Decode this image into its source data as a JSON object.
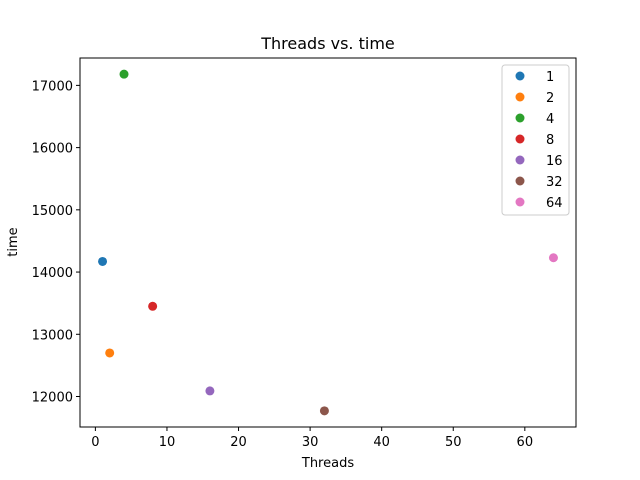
{
  "chart_data": {
    "type": "scatter",
    "title": "Threads vs. time",
    "xlabel": "Threads",
    "ylabel": "time",
    "xlim": [
      -2.15,
      67.15
    ],
    "ylim": [
      11510,
      17440
    ],
    "xticks": [
      0,
      10,
      20,
      30,
      40,
      50,
      60
    ],
    "yticks": [
      12000,
      13000,
      14000,
      15000,
      16000,
      17000
    ],
    "grid": false,
    "legend_position": "top-right",
    "series": [
      {
        "name": "1",
        "color": "#1f77b4",
        "points": [
          {
            "x": 1,
            "y": 14170
          }
        ]
      },
      {
        "name": "2",
        "color": "#ff7f0e",
        "points": [
          {
            "x": 2,
            "y": 12700
          }
        ]
      },
      {
        "name": "4",
        "color": "#2ca02c",
        "points": [
          {
            "x": 4,
            "y": 17180
          }
        ]
      },
      {
        "name": "8",
        "color": "#d62728",
        "points": [
          {
            "x": 8,
            "y": 13450
          }
        ]
      },
      {
        "name": "16",
        "color": "#9467bd",
        "points": [
          {
            "x": 16,
            "y": 12090
          }
        ]
      },
      {
        "name": "32",
        "color": "#8c564b",
        "points": [
          {
            "x": 32,
            "y": 11770
          }
        ]
      },
      {
        "name": "64",
        "color": "#e377c2",
        "points": [
          {
            "x": 64,
            "y": 14230
          }
        ]
      }
    ]
  }
}
